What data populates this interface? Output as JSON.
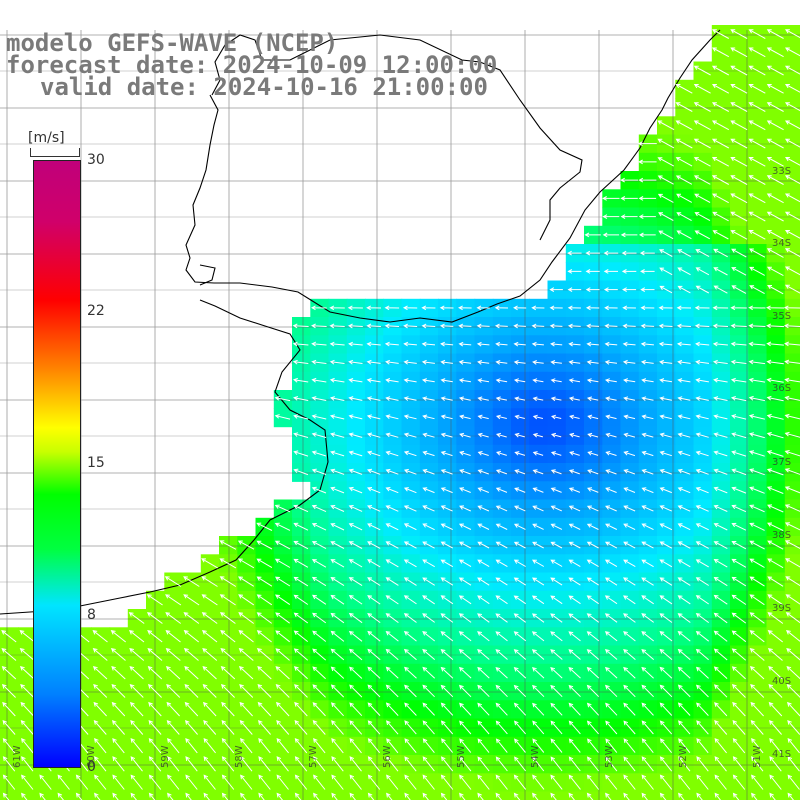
{
  "header": {
    "line1": "modelo GEFS-WAVE (NCEP)",
    "line2": "forecast date: 2024-10-09 12:00:00",
    "line3": "valid date: 2024-10-16 21:00:00"
  },
  "colorbar": {
    "unit": "[m/s]",
    "min": 0,
    "max": 30,
    "ticks": [
      "30",
      "22",
      "15",
      "8",
      "0"
    ],
    "tick_values": [
      30,
      22,
      15,
      8,
      0
    ],
    "colors": {
      "v0": "#0000ff",
      "v8": "#00e5ff",
      "v12": "#00ff00",
      "v15": "#ffff00",
      "v22": "#ff3300",
      "v30": "#c0007a"
    }
  },
  "lat_labels": [
    "33S",
    "34S",
    "35S",
    "36S",
    "37S",
    "38S",
    "39S",
    "40S",
    "41S"
  ],
  "lon_labels": [
    "61W",
    "60W",
    "59W",
    "58W",
    "57W",
    "56W",
    "55W",
    "54W",
    "53W",
    "52W",
    "51W"
  ],
  "field": {
    "variable": "wind speed and direction",
    "dominant_direction": "from east/northeast (arrows pointing west to southwest)",
    "weak_core": "blue (~3-5 m/s) over Rio de la Plata outer estuary",
    "strong_zone": "green (~11-12 m/s) along south-west coast and east edge"
  }
}
